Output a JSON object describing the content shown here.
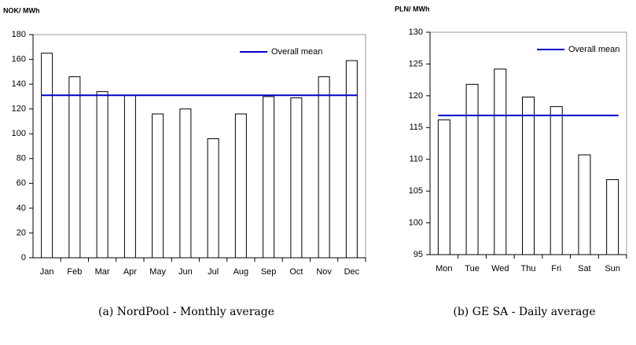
{
  "chart_data": [
    {
      "type": "bar",
      "y_label": "NOK/ MWh",
      "caption": "(a) NordPool - Monthly average",
      "categories": [
        "Jan",
        "Feb",
        "Mar",
        "Apr",
        "May",
        "Jun",
        "Jul",
        "Aug",
        "Sep",
        "Oct",
        "Nov",
        "Dec"
      ],
      "values": [
        165,
        146,
        134,
        131,
        116,
        120,
        96,
        116,
        130,
        129,
        146,
        159
      ],
      "color": "#ffffff",
      "mean": {
        "name": "Overall mean",
        "value": 131,
        "color": "#0000cc"
      },
      "ylim": [
        0,
        180
      ],
      "yticks": [
        0,
        20,
        40,
        60,
        80,
        100,
        120,
        140,
        160,
        180
      ],
      "legend": "upper right"
    },
    {
      "type": "bar",
      "y_label": "PLN/ MWh",
      "caption": "(b) GE SA - Daily average",
      "categories": [
        "Mon",
        "Tue",
        "Wed",
        "Thu",
        "Fri",
        "Sat",
        "Sun"
      ],
      "values": [
        116.2,
        121.8,
        124.2,
        119.8,
        118.3,
        110.7,
        106.8
      ],
      "color": "#ffffff",
      "mean": {
        "name": "Overall mean",
        "value": 116.9,
        "color": "#0000cc"
      },
      "ylim": [
        95,
        130
      ],
      "yticks": [
        95,
        100,
        105,
        110,
        115,
        120,
        125,
        130
      ],
      "legend": "upper right"
    }
  ]
}
